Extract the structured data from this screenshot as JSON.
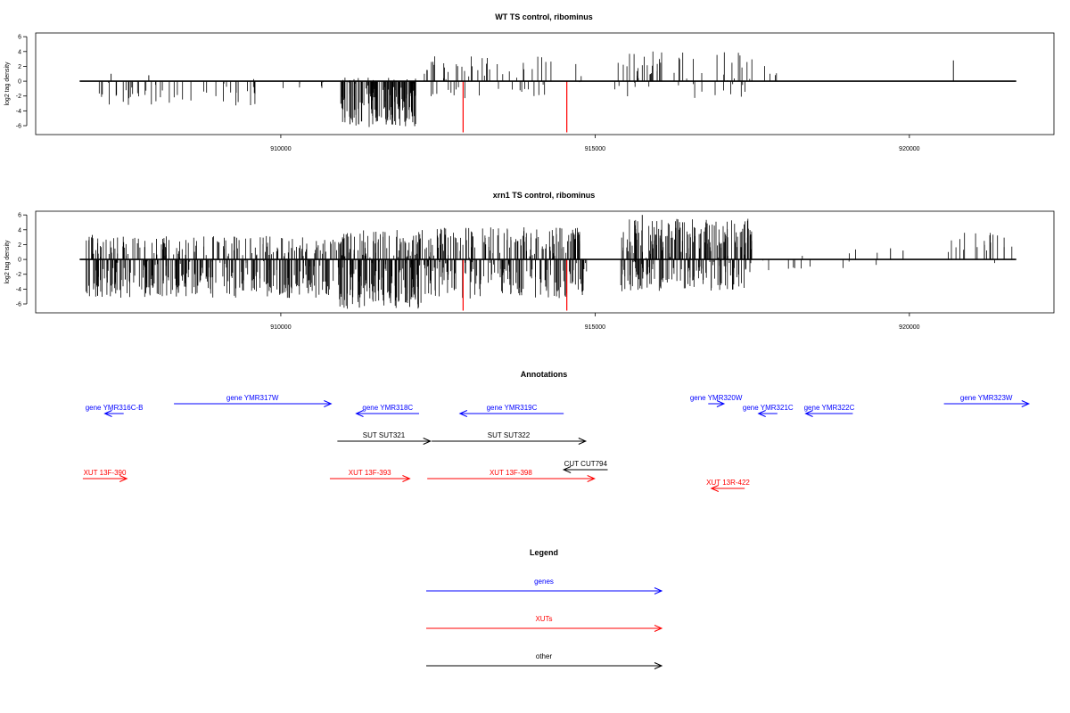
{
  "chart_data": [
    {
      "type": "bar",
      "title": "WT TS control, ribominus",
      "ylabel": "log2 tag density",
      "xlim": [
        906100,
        922300
      ],
      "ylim": [
        -7.2,
        6.5
      ],
      "yticks": [
        -6,
        -4,
        -2,
        0,
        2,
        4,
        6
      ],
      "xticks": [
        910000,
        915000,
        920000
      ],
      "baseline_range": [
        906800,
        921700
      ],
      "bar_color": "#000000",
      "highlight_color": "#ff0000",
      "groups": [
        {
          "from": 907100,
          "to": 909800,
          "count": 45,
          "min": -3.3,
          "max": 0.3,
          "seed": 3
        },
        {
          "from": 909800,
          "to": 910800,
          "count": 6,
          "min": -1.2,
          "max": 0.4,
          "seed": 5
        },
        {
          "from": 910950,
          "to": 912150,
          "count": 150,
          "min": -6.2,
          "max": 0.8,
          "seed": 7
        },
        {
          "from": 912200,
          "to": 914800,
          "count": 60,
          "min": -2.3,
          "max": 3.4,
          "seed": 11
        },
        {
          "from": 915300,
          "to": 917500,
          "count": 60,
          "min": -2.3,
          "max": 4.0,
          "seed": 13
        },
        {
          "from": 917600,
          "to": 918000,
          "count": 4,
          "min": 0.4,
          "max": 2.4,
          "seed": 17
        }
      ],
      "points": [
        [
          907300,
          1.0
        ],
        [
          907900,
          0.8
        ],
        [
          920700,
          2.8
        ],
        [
          911100,
          -5.8
        ],
        [
          911700,
          -5.3
        ],
        [
          912050,
          -3.5
        ]
      ],
      "highlights": [
        [
          912900,
          -6.9
        ],
        [
          914550,
          -6.9
        ]
      ]
    },
    {
      "type": "bar",
      "title": "xrn1 TS control, ribominus",
      "ylabel": "log2 tag density",
      "xlim": [
        906100,
        922300
      ],
      "ylim": [
        -7.2,
        6.5
      ],
      "yticks": [
        -6,
        -4,
        -2,
        0,
        2,
        4,
        6
      ],
      "xticks": [
        910000,
        915000,
        920000
      ],
      "baseline_range": [
        906800,
        921700
      ],
      "bar_color": "#000000",
      "highlight_color": "#ff0000",
      "groups": [
        {
          "from": 906900,
          "to": 910900,
          "count": 420,
          "min": -5.2,
          "max": 3.2,
          "seed": 19
        },
        {
          "from": 910900,
          "to": 912300,
          "count": 230,
          "min": -6.7,
          "max": 4.0,
          "seed": 23
        },
        {
          "from": 912300,
          "to": 914900,
          "count": 280,
          "min": -5.3,
          "max": 4.4,
          "seed": 29
        },
        {
          "from": 915400,
          "to": 917500,
          "count": 280,
          "min": -4.3,
          "max": 5.5,
          "seed": 31
        },
        {
          "from": 917600,
          "to": 919500,
          "count": 14,
          "min": -1.8,
          "max": 1.8,
          "seed": 37
        },
        {
          "from": 920600,
          "to": 921700,
          "count": 22,
          "min": -0.6,
          "max": 3.6,
          "seed": 41
        }
      ],
      "points": [
        [
          915750,
          6.0
        ],
        [
          907000,
          3.3
        ],
        [
          911250,
          -6.5
        ],
        [
          912050,
          -6.4
        ],
        [
          919700,
          1.5
        ],
        [
          919900,
          1.2
        ]
      ],
      "highlights": [
        [
          912900,
          -6.9
        ],
        [
          914550,
          -6.9
        ]
      ]
    },
    {
      "type": "annotation-track",
      "title": "Annotations",
      "tracks": [
        {
          "label": "gene YMR317W",
          "from": 908300,
          "to": 910800,
          "direction": "right",
          "color": "#0000ff",
          "row": 0
        },
        {
          "label": "gene YMR316C-B",
          "from": 907200,
          "to": 907500,
          "direction": "left",
          "color": "#0000ff",
          "row": 1
        },
        {
          "label": "gene YMR318C",
          "from": 911200,
          "to": 912200,
          "direction": "left",
          "color": "#0000ff",
          "row": 1
        },
        {
          "label": "gene YMR319C",
          "from": 912850,
          "to": 914500,
          "direction": "left",
          "color": "#0000ff",
          "row": 1
        },
        {
          "label": "gene YMR320W",
          "from": 916800,
          "to": 917050,
          "direction": "right",
          "color": "#0000ff",
          "row": 0
        },
        {
          "label": "gene YMR321C",
          "from": 917600,
          "to": 917900,
          "direction": "left",
          "color": "#0000ff",
          "row": 1
        },
        {
          "label": "gene YMR322C",
          "from": 918350,
          "to": 919100,
          "direction": "left",
          "color": "#0000ff",
          "row": 1
        },
        {
          "label": "gene YMR323W",
          "from": 920550,
          "to": 921900,
          "direction": "right",
          "color": "#0000ff",
          "row": 0
        },
        {
          "label": "SUT SUT321",
          "from": 910900,
          "to": 912380,
          "direction": "right",
          "color": "#000000",
          "row": 2
        },
        {
          "label": "SUT SUT322",
          "from": 912400,
          "to": 914850,
          "direction": "right",
          "color": "#000000",
          "row": 2
        },
        {
          "label": "CUT CUT794",
          "from": 914500,
          "to": 915200,
          "direction": "left",
          "color": "#000000",
          "row": 3
        },
        {
          "label": "XUT 13F-390",
          "from": 906850,
          "to": 907550,
          "direction": "right",
          "color": "#ff0000",
          "row": 4
        },
        {
          "label": "XUT 13F-393",
          "from": 910780,
          "to": 912050,
          "direction": "right",
          "color": "#ff0000",
          "row": 4
        },
        {
          "label": "XUT 13F-398",
          "from": 912330,
          "to": 914990,
          "direction": "right",
          "color": "#ff0000",
          "row": 4
        },
        {
          "label": "XUT 13R-422",
          "from": 916850,
          "to": 917380,
          "direction": "left",
          "color": "#ff0000",
          "row": 5
        }
      ]
    },
    {
      "type": "legend",
      "title": "Legend",
      "entries": [
        {
          "label": "genes",
          "color": "#0000ff"
        },
        {
          "label": "XUTs",
          "color": "#ff0000"
        },
        {
          "label": "other",
          "color": "#000000"
        }
      ]
    }
  ]
}
